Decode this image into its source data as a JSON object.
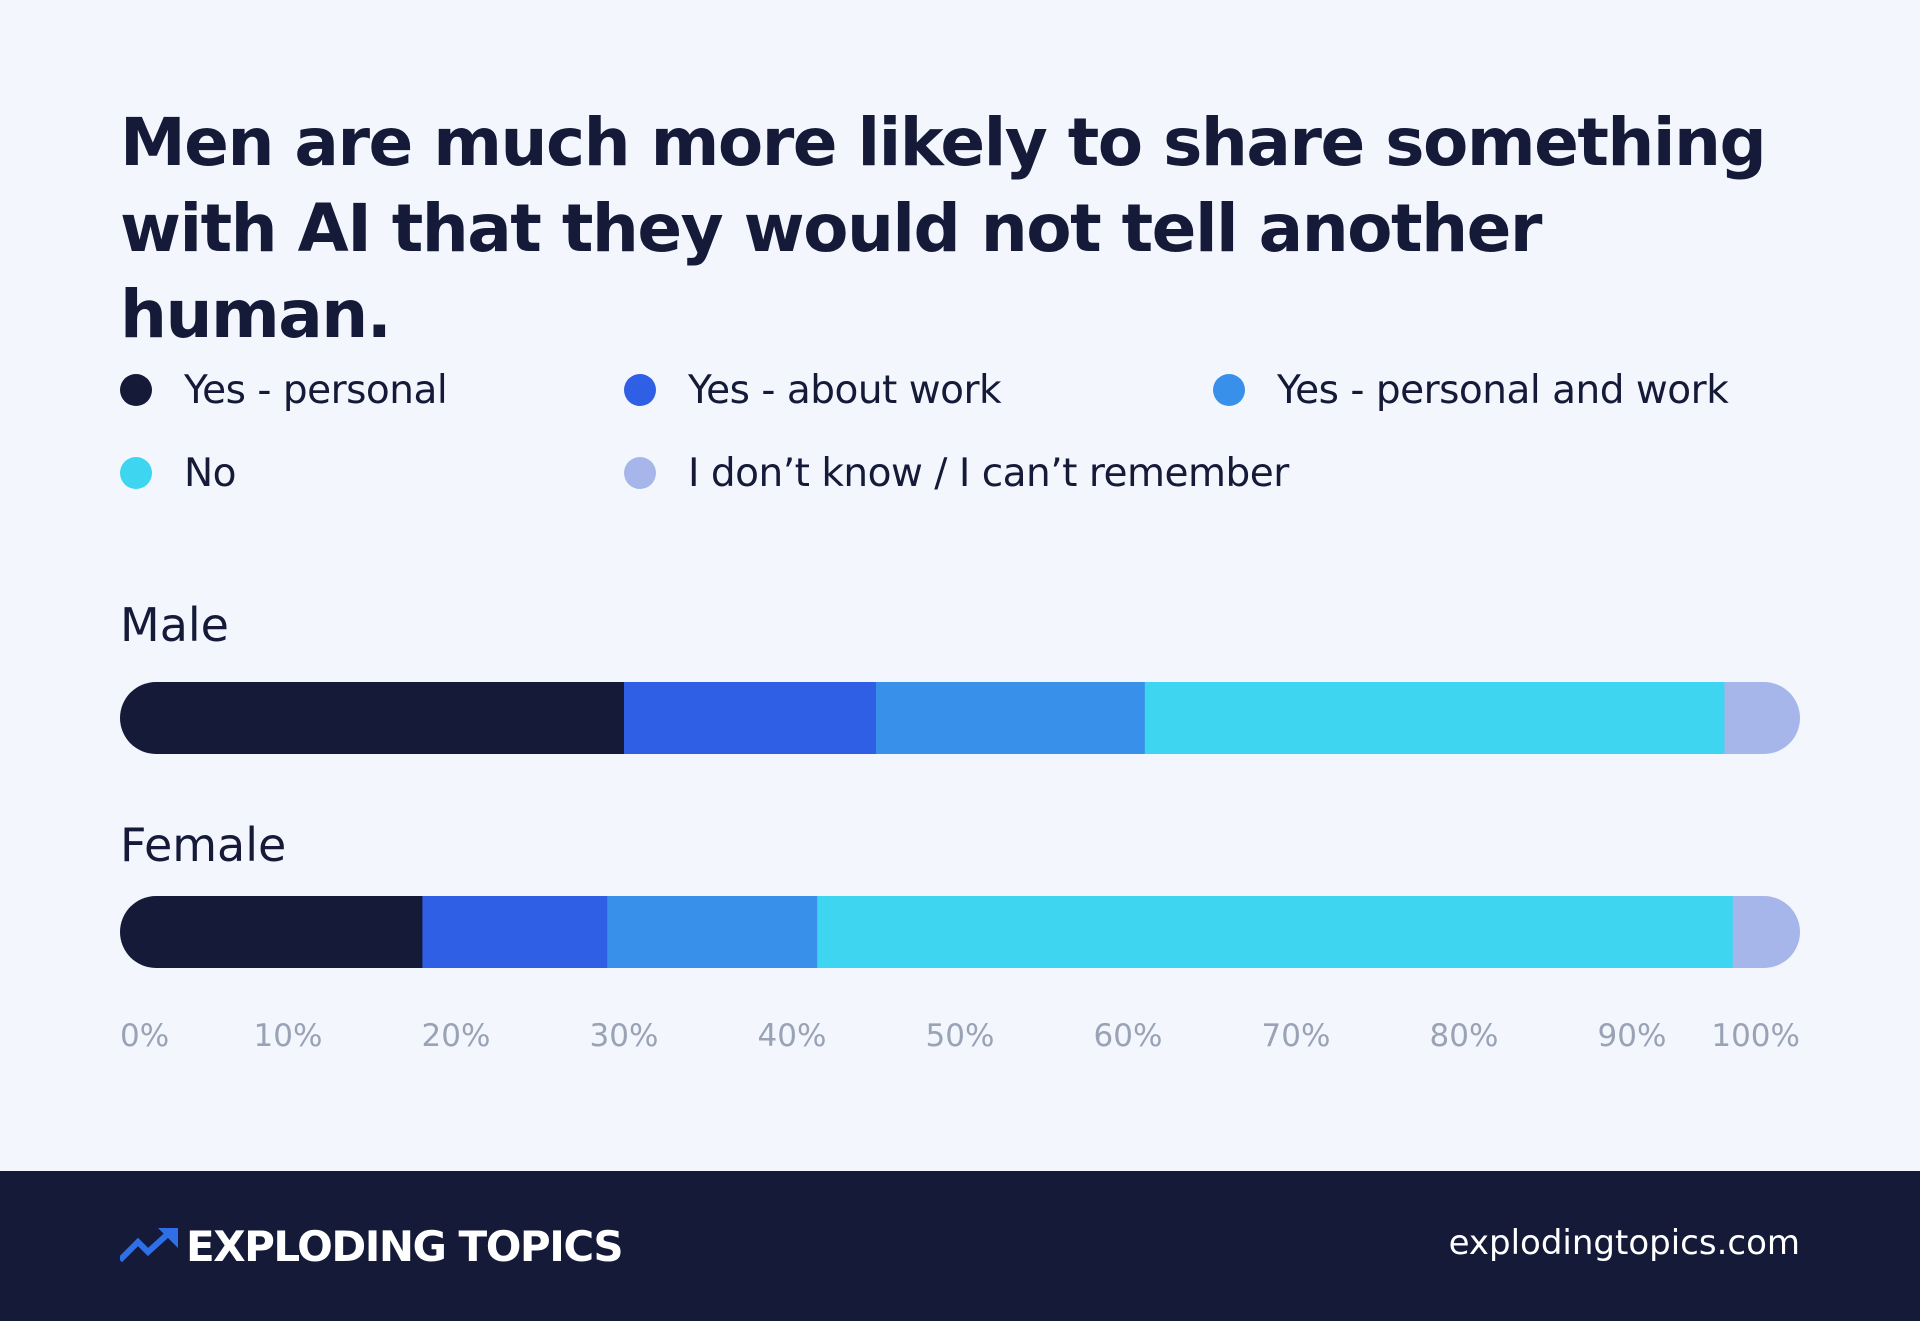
{
  "title": "Men are much more likely to share something with AI that they would not tell another human.",
  "chart_data": {
    "type": "bar",
    "orientation": "horizontal",
    "stacked": true,
    "categories": [
      "Male",
      "Female"
    ],
    "series": [
      {
        "name": "Yes -  personal",
        "color": "#141a38",
        "values": [
          30,
          18
        ]
      },
      {
        "name": "Yes - about work",
        "color": "#2f5fe4",
        "values": [
          15,
          11
        ]
      },
      {
        "name": "Yes - personal and work",
        "color": "#3890ea",
        "values": [
          16,
          12.5
        ]
      },
      {
        "name": "No",
        "color": "#3dd5ef",
        "values": [
          34.5,
          54.5
        ]
      },
      {
        "name": "I don’t know / I can’t remember",
        "color": "#a7b6ea",
        "values": [
          4.5,
          4
        ]
      }
    ],
    "xlim": [
      0,
      100
    ],
    "xticks": [
      "0%",
      "10%",
      "20%",
      "30%",
      "40%",
      "50%",
      "60%",
      "70%",
      "80%",
      "90%",
      "100%"
    ],
    "legend_position": "top",
    "grid": false
  },
  "footer": {
    "brand": "EXPLODING TOPICS",
    "url": "explodingtopics.com",
    "logo_icon": "trend-arrow-icon"
  }
}
